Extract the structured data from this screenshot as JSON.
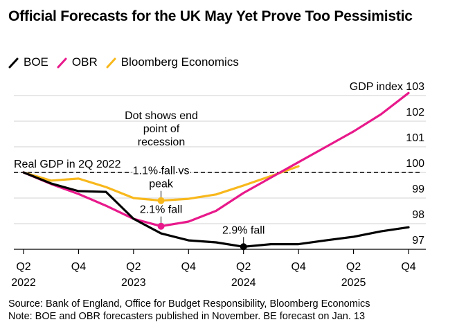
{
  "header": {
    "title": "Official Forecasts for the UK May Yet Prove Too Pessimistic"
  },
  "legend": [
    {
      "name": "BOE",
      "color": "#000000"
    },
    {
      "name": "OBR",
      "color": "#e8198b"
    },
    {
      "name": "Bloomberg Economics",
      "color": "#f8b81c"
    }
  ],
  "footer": {
    "source": "Source: Bank of England, Office for Budget Responsibility, Bloomberg Economics",
    "note": "Note: BOE and OBR forecasters published in November. BE forecast on Jan. 13"
  },
  "chart_data": {
    "type": "line",
    "title": "Official Forecasts for the UK May Yet Prove Too Pessimistic",
    "xlabel": "",
    "ylabel": "GDP index",
    "ylim": [
      97,
      103
    ],
    "yticks": [
      97,
      98,
      99,
      100,
      101,
      102,
      103
    ],
    "ytick_labels": [
      "97",
      "98",
      "99",
      "100",
      "101",
      "102",
      "GDP index 103"
    ],
    "y_axis_side": "right",
    "grid": true,
    "x": [
      "Q2 2022",
      "Q3 2022",
      "Q4 2022",
      "Q1 2023",
      "Q2 2023",
      "Q3 2023",
      "Q4 2023",
      "Q1 2024",
      "Q2 2024",
      "Q3 2024",
      "Q4 2024",
      "Q1 2025",
      "Q2 2025",
      "Q3 2025",
      "Q4 2025"
    ],
    "xticks": [
      {
        "index": 0,
        "label": [
          "Q2",
          "2022"
        ]
      },
      {
        "index": 2,
        "label": [
          "Q4",
          ""
        ]
      },
      {
        "index": 4,
        "label": [
          "Q2",
          "2023"
        ]
      },
      {
        "index": 6,
        "label": [
          "Q4",
          ""
        ]
      },
      {
        "index": 8,
        "label": [
          "Q2",
          "2024"
        ]
      },
      {
        "index": 10,
        "label": [
          "Q4",
          ""
        ]
      },
      {
        "index": 12,
        "label": [
          "Q2",
          "2025"
        ]
      },
      {
        "index": 14,
        "label": [
          "Q4",
          ""
        ]
      }
    ],
    "series": [
      {
        "name": "Bloomberg Economics",
        "color": "#f8b81c",
        "values": [
          100,
          99.68,
          99.76,
          99.43,
          99.0,
          98.9,
          98.97,
          99.14,
          99.49,
          99.86,
          100.24,
          null,
          null,
          null,
          null
        ]
      },
      {
        "name": "OBR",
        "color": "#e8198b",
        "values": [
          100,
          99.55,
          99.16,
          98.7,
          98.19,
          97.9,
          98.08,
          98.5,
          99.2,
          99.8,
          100.4,
          101.0,
          101.6,
          102.27,
          103.1
        ]
      },
      {
        "name": "BOE",
        "color": "#000000",
        "values": [
          100,
          99.57,
          99.27,
          99.24,
          98.19,
          97.62,
          97.35,
          97.27,
          97.1,
          97.2,
          97.2,
          97.35,
          97.49,
          97.7,
          97.86
        ]
      }
    ],
    "reference_line": {
      "value": 100,
      "label": "Real GDP in 2Q 2022",
      "style": "dashed"
    },
    "annotations": [
      {
        "text": "Dot shows end point of recession",
        "lines": [
          "Dot shows end",
          "point of",
          "recession"
        ]
      },
      {
        "series": "Bloomberg Economics",
        "index": 5,
        "lines": [
          "1.1% fall vs",
          "peak"
        ]
      },
      {
        "series": "OBR",
        "index": 5,
        "lines": [
          "2.1% fall"
        ]
      },
      {
        "series": "BOE",
        "index": 8,
        "lines": [
          "2.9% fall"
        ]
      }
    ],
    "legend_position": "top-left"
  }
}
